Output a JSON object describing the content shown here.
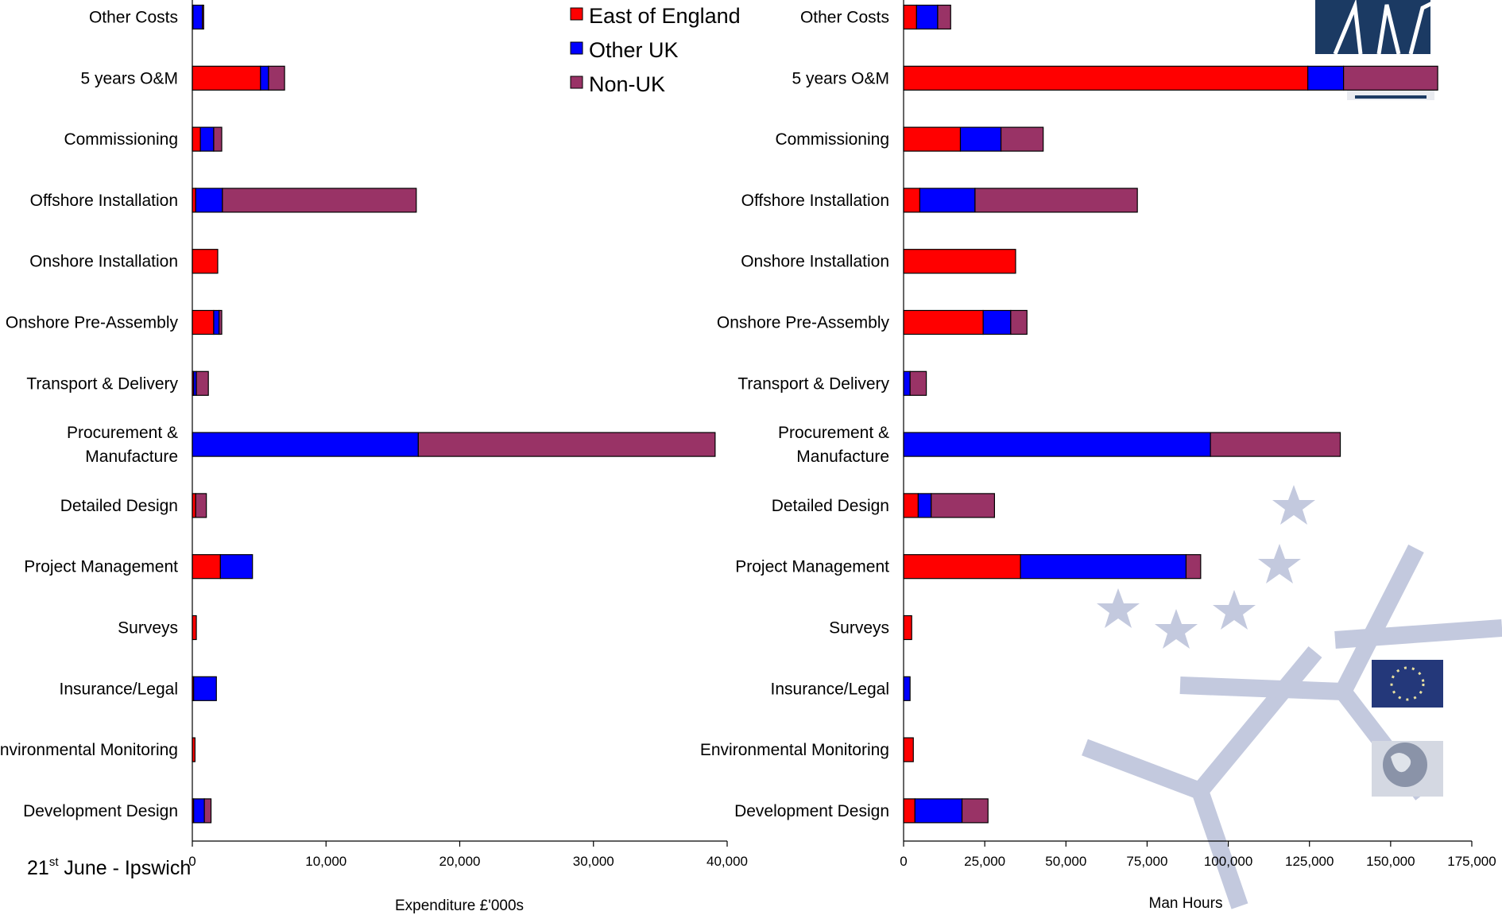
{
  "footer": {
    "date_main": "21",
    "date_sup": "st",
    "date_rest": " June - Ipswich"
  },
  "legend": [
    {
      "label": "East of England",
      "color": "#ff0000"
    },
    {
      "label": "Other UK",
      "color": "#0000ff"
    },
    {
      "label": "Non-UK",
      "color": "#993366"
    }
  ],
  "chart_data": [
    {
      "type": "bar",
      "orientation": "horizontal",
      "stacked": true,
      "xlabel": "Expenditure £'000s",
      "xlim": [
        0,
        40000
      ],
      "xticks": [
        "0",
        "10,000",
        "20,000",
        "30,000",
        "40,000"
      ],
      "xtick_values": [
        0,
        10000,
        20000,
        30000,
        40000
      ],
      "categories": [
        [
          "Other Costs"
        ],
        [
          "5 years O&M"
        ],
        [
          "Commissioning"
        ],
        [
          "Offshore Installation"
        ],
        [
          "Onshore Installation"
        ],
        [
          "Onshore Pre-Assembly"
        ],
        [
          "Transport & Delivery"
        ],
        [
          "Procurement &",
          "Manufacture"
        ],
        [
          "Detailed Design"
        ],
        [
          "Project Management"
        ],
        [
          "Surveys"
        ],
        [
          "Insurance/Legal"
        ],
        [
          "Environmental Monitoring"
        ],
        [
          "Development Design"
        ]
      ],
      "series": [
        {
          "name": "East of England",
          "color": "#ff0000",
          "values": [
            50,
            5100,
            600,
            250,
            1900,
            1600,
            100,
            0,
            250,
            2100,
            300,
            100,
            200,
            100
          ]
        },
        {
          "name": "Other UK",
          "color": "#0000ff",
          "values": [
            700,
            600,
            1000,
            2000,
            0,
            400,
            200,
            16900,
            0,
            2400,
            0,
            1700,
            0,
            800
          ]
        },
        {
          "name": "Non-UK",
          "color": "#993366",
          "values": [
            100,
            1200,
            600,
            14500,
            0,
            200,
            900,
            22200,
            800,
            0,
            0,
            0,
            0,
            500
          ]
        }
      ]
    },
    {
      "type": "bar",
      "orientation": "horizontal",
      "stacked": true,
      "xlabel": "Man Hours",
      "xlim": [
        0,
        175000
      ],
      "xticks": [
        "0",
        "25,000",
        "50,000",
        "75,000",
        "100,000",
        "125,000",
        "150,000",
        "175,000"
      ],
      "xtick_values": [
        0,
        25000,
        50000,
        75000,
        100000,
        125000,
        150000,
        175000
      ],
      "categories": [
        [
          "Other Costs"
        ],
        [
          "5 years O&M"
        ],
        [
          "Commissioning"
        ],
        [
          "Offshore Installation"
        ],
        [
          "Onshore Installation"
        ],
        [
          "Onshore Pre-Assembly"
        ],
        [
          "Transport & Delivery"
        ],
        [
          "Procurement &",
          "Manufacture"
        ],
        [
          "Detailed Design"
        ],
        [
          "Project Management"
        ],
        [
          "Surveys"
        ],
        [
          "Insurance/Legal"
        ],
        [
          "Environmental Monitoring"
        ],
        [
          "Development Design"
        ]
      ],
      "series": [
        {
          "name": "East of England",
          "color": "#ff0000",
          "values": [
            4000,
            124500,
            17500,
            5000,
            34500,
            24500,
            0,
            0,
            4500,
            36000,
            2500,
            0,
            3000,
            3500
          ]
        },
        {
          "name": "Other UK",
          "color": "#0000ff",
          "values": [
            6500,
            11000,
            12500,
            17000,
            0,
            8500,
            2000,
            94500,
            4000,
            51000,
            0,
            2000,
            0,
            14500
          ]
        },
        {
          "name": "Non-UK",
          "color": "#993366",
          "values": [
            4000,
            29000,
            13000,
            50000,
            0,
            5000,
            5000,
            40000,
            19500,
            4500,
            0,
            0,
            0,
            8000
          ]
        }
      ]
    }
  ]
}
